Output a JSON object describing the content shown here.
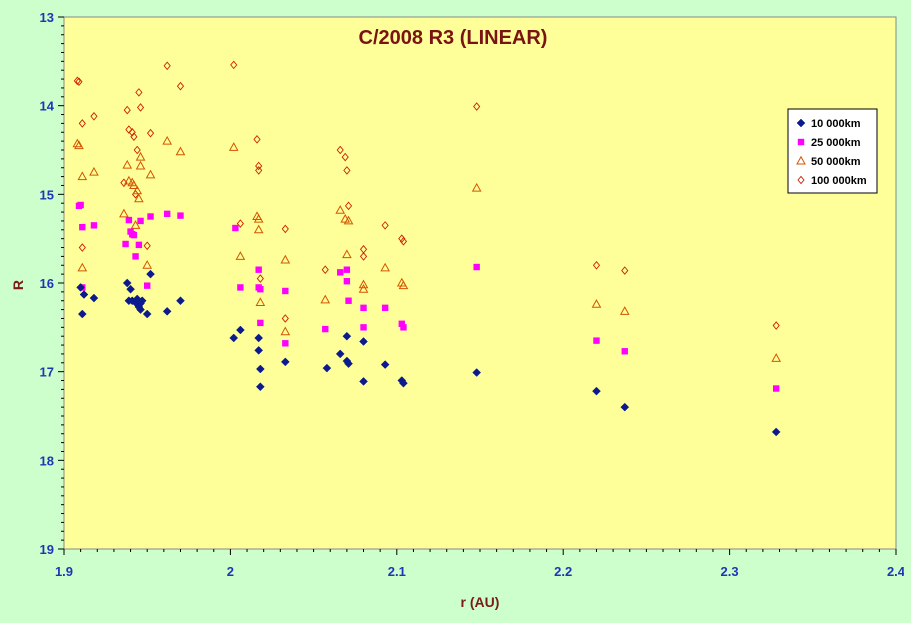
{
  "chart_data": {
    "type": "scatter",
    "title": "C/2008 R3 (LINEAR)",
    "xlabel": "r (AU)",
    "ylabel": "R",
    "xlim": [
      1.9,
      2.4
    ],
    "ylim": [
      13,
      19
    ],
    "y_inverted": true,
    "x_ticks": [
      "1.9",
      "2",
      "2.1",
      "2.2",
      "2.3",
      "2.4"
    ],
    "y_ticks": [
      "13",
      "14",
      "15",
      "16",
      "17",
      "18",
      "19"
    ],
    "grid": false,
    "legend_position": "top-right",
    "colors": {
      "plot_background": "#ffff99",
      "page_background": "#ccffcc",
      "series_1": "#0b1a8c",
      "series_2": "#ff00ff",
      "series_3": "#d45500",
      "series_4": "#cc2200"
    },
    "series": [
      {
        "name": "10 000km",
        "marker": "diamond",
        "points": [
          [
            1.91,
            16.05
          ],
          [
            1.911,
            16.35
          ],
          [
            1.912,
            16.13
          ],
          [
            1.918,
            16.17
          ],
          [
            1.938,
            16.0
          ],
          [
            1.939,
            16.2
          ],
          [
            1.94,
            16.07
          ],
          [
            1.941,
            16.2
          ],
          [
            1.943,
            16.22
          ],
          [
            1.944,
            16.18
          ],
          [
            1.945,
            16.27
          ],
          [
            1.946,
            16.23
          ],
          [
            1.946,
            16.3
          ],
          [
            1.947,
            16.2
          ],
          [
            1.95,
            16.35
          ],
          [
            1.952,
            15.9
          ],
          [
            1.962,
            16.32
          ],
          [
            1.97,
            16.2
          ],
          [
            2.002,
            16.62
          ],
          [
            2.006,
            16.53
          ],
          [
            2.017,
            16.62
          ],
          [
            2.017,
            16.76
          ],
          [
            2.018,
            16.97
          ],
          [
            2.018,
            17.17
          ],
          [
            2.033,
            16.89
          ],
          [
            2.058,
            16.96
          ],
          [
            2.066,
            16.8
          ],
          [
            2.07,
            16.6
          ],
          [
            2.07,
            16.88
          ],
          [
            2.071,
            16.91
          ],
          [
            2.08,
            16.66
          ],
          [
            2.08,
            17.11
          ],
          [
            2.093,
            16.92
          ],
          [
            2.103,
            17.1
          ],
          [
            2.104,
            17.13
          ],
          [
            2.148,
            17.01
          ],
          [
            2.22,
            17.22
          ],
          [
            2.237,
            17.4
          ],
          [
            2.328,
            17.68
          ]
        ]
      },
      {
        "name": "25 000km",
        "marker": "square",
        "points": [
          [
            1.909,
            15.13
          ],
          [
            1.91,
            15.12
          ],
          [
            1.911,
            15.37
          ],
          [
            1.911,
            16.05
          ],
          [
            1.918,
            15.35
          ],
          [
            1.937,
            15.56
          ],
          [
            1.939,
            15.29
          ],
          [
            1.94,
            15.42
          ],
          [
            1.941,
            15.45
          ],
          [
            1.942,
            15.46
          ],
          [
            1.943,
            15.7
          ],
          [
            1.945,
            15.57
          ],
          [
            1.946,
            15.3
          ],
          [
            1.95,
            16.03
          ],
          [
            1.952,
            15.25
          ],
          [
            1.962,
            15.22
          ],
          [
            1.97,
            15.24
          ],
          [
            2.003,
            15.38
          ],
          [
            2.006,
            16.05
          ],
          [
            2.017,
            15.85
          ],
          [
            2.017,
            16.05
          ],
          [
            2.018,
            16.07
          ],
          [
            2.018,
            16.45
          ],
          [
            2.033,
            16.09
          ],
          [
            2.033,
            16.68
          ],
          [
            2.057,
            16.52
          ],
          [
            2.066,
            15.88
          ],
          [
            2.07,
            15.85
          ],
          [
            2.07,
            15.98
          ],
          [
            2.071,
            16.2
          ],
          [
            2.08,
            16.28
          ],
          [
            2.08,
            16.5
          ],
          [
            2.093,
            16.28
          ],
          [
            2.103,
            16.46
          ],
          [
            2.104,
            16.5
          ],
          [
            2.148,
            15.82
          ],
          [
            2.22,
            16.65
          ],
          [
            2.237,
            16.77
          ],
          [
            2.328,
            17.19
          ]
        ]
      },
      {
        "name": "50 000km",
        "marker": "triangle",
        "points": [
          [
            1.908,
            14.43
          ],
          [
            1.909,
            14.45
          ],
          [
            1.911,
            14.8
          ],
          [
            1.911,
            15.83
          ],
          [
            1.918,
            14.75
          ],
          [
            1.936,
            15.22
          ],
          [
            1.938,
            14.67
          ],
          [
            1.939,
            14.85
          ],
          [
            1.941,
            14.87
          ],
          [
            1.942,
            14.9
          ],
          [
            1.943,
            15.35
          ],
          [
            1.944,
            14.96
          ],
          [
            1.945,
            15.05
          ],
          [
            1.946,
            14.68
          ],
          [
            1.946,
            14.58
          ],
          [
            1.95,
            15.8
          ],
          [
            1.952,
            14.78
          ],
          [
            1.962,
            14.4
          ],
          [
            1.97,
            14.52
          ],
          [
            2.002,
            14.47
          ],
          [
            2.006,
            15.7
          ],
          [
            2.016,
            15.25
          ],
          [
            2.017,
            15.28
          ],
          [
            2.017,
            15.4
          ],
          [
            2.018,
            16.22
          ],
          [
            2.033,
            15.74
          ],
          [
            2.033,
            16.55
          ],
          [
            2.057,
            16.19
          ],
          [
            2.066,
            15.18
          ],
          [
            2.069,
            15.28
          ],
          [
            2.07,
            15.68
          ],
          [
            2.071,
            15.3
          ],
          [
            2.08,
            16.02
          ],
          [
            2.08,
            16.07
          ],
          [
            2.093,
            15.83
          ],
          [
            2.103,
            16.0
          ],
          [
            2.104,
            16.03
          ],
          [
            2.148,
            14.93
          ],
          [
            2.22,
            16.24
          ],
          [
            2.237,
            16.32
          ],
          [
            2.328,
            16.85
          ]
        ]
      },
      {
        "name": "100 000km",
        "marker": "diamond-open",
        "points": [
          [
            1.908,
            13.72
          ],
          [
            1.909,
            13.73
          ],
          [
            1.911,
            14.2
          ],
          [
            1.911,
            15.6
          ],
          [
            1.918,
            14.12
          ],
          [
            1.936,
            14.87
          ],
          [
            1.938,
            14.05
          ],
          [
            1.939,
            14.27
          ],
          [
            1.941,
            14.3
          ],
          [
            1.942,
            14.35
          ],
          [
            1.943,
            15.0
          ],
          [
            1.944,
            14.5
          ],
          [
            1.945,
            13.85
          ],
          [
            1.946,
            14.02
          ],
          [
            1.95,
            15.58
          ],
          [
            1.952,
            14.31
          ],
          [
            1.962,
            13.55
          ],
          [
            1.97,
            13.78
          ],
          [
            2.002,
            13.54
          ],
          [
            2.006,
            15.33
          ],
          [
            2.016,
            14.38
          ],
          [
            2.017,
            14.68
          ],
          [
            2.017,
            14.73
          ],
          [
            2.018,
            15.95
          ],
          [
            2.033,
            15.39
          ],
          [
            2.033,
            16.4
          ],
          [
            2.057,
            15.85
          ],
          [
            2.066,
            14.5
          ],
          [
            2.069,
            14.58
          ],
          [
            2.07,
            14.73
          ],
          [
            2.071,
            15.13
          ],
          [
            2.08,
            15.62
          ],
          [
            2.08,
            15.7
          ],
          [
            2.093,
            15.35
          ],
          [
            2.103,
            15.5
          ],
          [
            2.104,
            15.53
          ],
          [
            2.148,
            14.01
          ],
          [
            2.22,
            15.8
          ],
          [
            2.237,
            15.86
          ],
          [
            2.328,
            16.48
          ]
        ]
      }
    ]
  }
}
